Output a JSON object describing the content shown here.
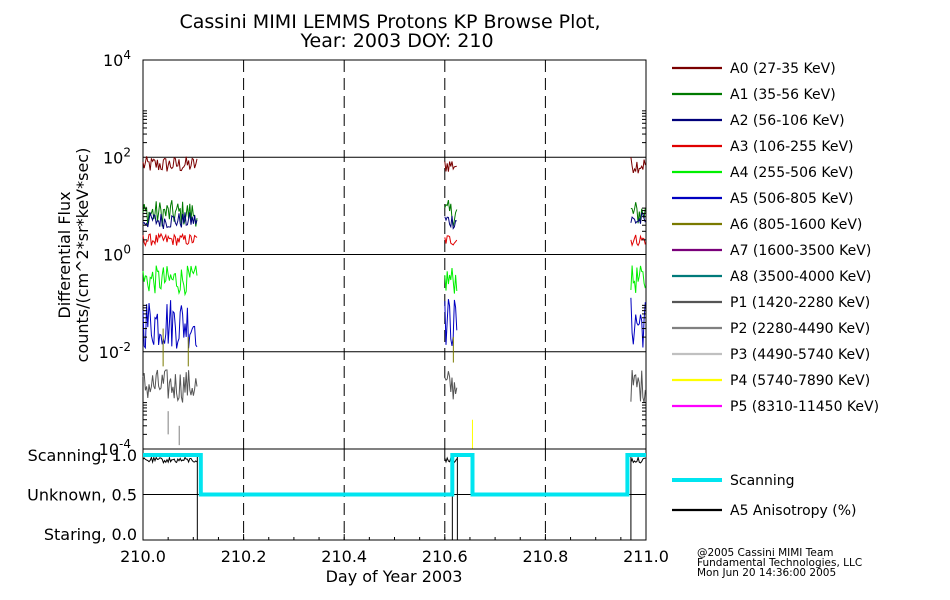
{
  "chart_data": [
    {
      "type": "line",
      "title_lines": [
        "Cassini MIMI LEMMS Protons KP Browse Plot,",
        "Year: 2003 DOY: 210"
      ],
      "ylabel_lines": [
        "Differential Flux",
        "counts/(cm^2*sr*keV*sec)"
      ],
      "yscale": "log",
      "ylim": [
        0.0001,
        10000
      ],
      "xlim": [
        210.0,
        211.0
      ],
      "y_ticks": [
        {
          "value": 0.0001,
          "base": "10",
          "exp": "-4"
        },
        {
          "value": 0.01,
          "base": "10",
          "exp": "-2"
        },
        {
          "value": 1,
          "base": "10",
          "exp": "0"
        },
        {
          "value": 100,
          "base": "10",
          "exp": "2"
        },
        {
          "value": 10000,
          "base": "10",
          "exp": "4"
        }
      ],
      "vertical_dashed_lines_x": [
        210.2,
        210.4,
        210.6,
        210.8
      ],
      "data_intervals": [
        [
          210.0,
          210.108
        ],
        [
          210.6,
          210.625
        ],
        [
          210.97,
          211.0
        ]
      ],
      "series": [
        {
          "name": "A0 (27-35 KeV)",
          "color": "#7a0000",
          "typical_value": 70
        },
        {
          "name": "A1 (35-56 KeV)",
          "color": "#007a00",
          "typical_value": 7
        },
        {
          "name": "A2 (56-106 KeV)",
          "color": "#00007a",
          "typical_value": 5
        },
        {
          "name": "A3 (106-255 KeV)",
          "color": "#e00000",
          "typical_value": 2
        },
        {
          "name": "A4 (255-506 KeV)",
          "color": "#00f000",
          "typical_value": 0.3
        },
        {
          "name": "A5 (506-805 KeV)",
          "color": "#0000c0",
          "typical_value": 0.04
        },
        {
          "name": "A6 (805-1600 KeV)",
          "color": "#7a7a00",
          "typical_value": null
        },
        {
          "name": "A7 (1600-3500 KeV)",
          "color": "#7a007a",
          "typical_value": null
        },
        {
          "name": "A8 (3500-4000 KeV)",
          "color": "#007a7a",
          "typical_value": null
        },
        {
          "name": "P1 (1420-2280 KeV)",
          "color": "#555555",
          "typical_value": 0.002
        },
        {
          "name": "P2 (2280-4490 KeV)",
          "color": "#808080",
          "typical_value": null
        },
        {
          "name": "P3 (4490-5740 KeV)",
          "color": "#c0c0c0",
          "typical_value": null
        },
        {
          "name": "P4 (5740-7890 KeV)",
          "color": "#ffff00",
          "typical_value": null
        },
        {
          "name": "P5 (8310-11450 KeV)",
          "color": "#ff00ff",
          "typical_value": null
        }
      ]
    },
    {
      "type": "line",
      "xlabel": "Day of Year 2003",
      "xlim": [
        210.0,
        211.0
      ],
      "ylim": [
        0.0,
        1.0
      ],
      "x_ticks": [
        {
          "value": 210.0,
          "label": "210.0"
        },
        {
          "value": 210.2,
          "label": "210.2"
        },
        {
          "value": 210.4,
          "label": "210.4"
        },
        {
          "value": 210.6,
          "label": "210.6"
        },
        {
          "value": 210.8,
          "label": "210.8"
        },
        {
          "value": 211.0,
          "label": "211.0"
        }
      ],
      "y_ticks": [
        {
          "value": 1.0,
          "label": "Scanning, 1.0"
        },
        {
          "value": 0.5,
          "label": "Unknown, 0.5"
        },
        {
          "value": 0.0,
          "label": "Staring, 0.0"
        }
      ],
      "series": [
        {
          "name": "Scanning",
          "color": "#00e5f0",
          "x": [
            210.0,
            210.115,
            210.115,
            210.615,
            210.615,
            210.655,
            210.655,
            210.963,
            210.963,
            211.0
          ],
          "y": [
            1.0,
            1.0,
            0.5,
            0.5,
            1.0,
            1.0,
            0.5,
            0.5,
            1.0,
            1.0
          ]
        },
        {
          "name": "A5 Anisotropy (%)",
          "color": "#000000",
          "typical_value": 0.97,
          "data_intervals": [
            [
              210.0,
              210.108
            ],
            [
              210.6,
              210.625
            ],
            [
              210.97,
              211.0
            ]
          ]
        }
      ]
    }
  ],
  "footer": {
    "lines": [
      "@2005 Cassini MIMI Team",
      "Fundamental Technologies, LLC",
      "Mon Jun 20 14:36:00 2005"
    ]
  }
}
